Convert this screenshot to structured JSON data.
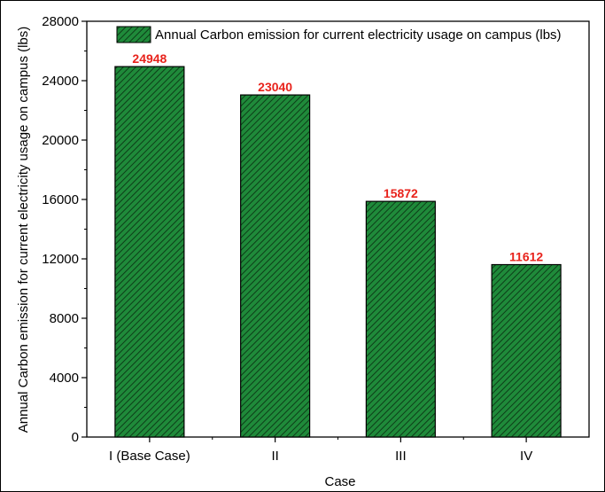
{
  "chart_data": {
    "type": "bar",
    "title": "",
    "xlabel": "Case",
    "ylabel": "Annual Carbon emission for current electricity usage on campus (lbs)",
    "categories": [
      "I (Base Case)",
      "II",
      "III",
      "IV"
    ],
    "series": [
      {
        "name": "Annual Carbon emission for current electricity usage on campus (lbs)",
        "values": [
          24948,
          23040,
          15872,
          11612
        ]
      }
    ],
    "data_labels": [
      "24948",
      "23040",
      "15872",
      "11612"
    ],
    "ylim": [
      0,
      28000
    ],
    "yticks": [
      0,
      4000,
      8000,
      12000,
      16000,
      20000,
      24000,
      28000
    ],
    "ytick_labels": [
      "0",
      "4000",
      "8000",
      "12000",
      "16000",
      "20000",
      "24000",
      "28000"
    ],
    "grid": false,
    "legend_position": "top-right",
    "colors": {
      "bar_fill": "#1f8a3a",
      "bar_hatch": "#0d3d18",
      "bar_edge": "#000000",
      "data_label": "#e8231c"
    }
  }
}
